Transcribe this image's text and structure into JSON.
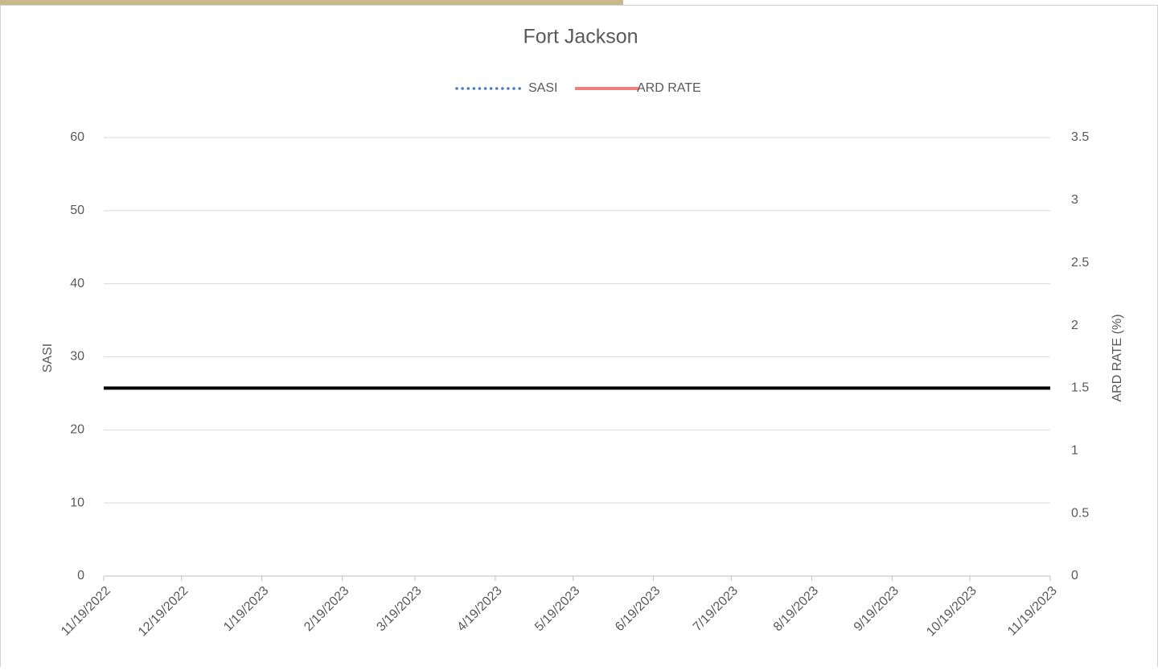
{
  "chart_data": {
    "type": "line",
    "title": "Fort Jackson",
    "x": [
      "11/19/2022",
      "12/19/2022",
      "1/19/2023",
      "2/19/2023",
      "3/19/2023",
      "4/19/2023",
      "5/19/2023",
      "6/19/2023",
      "7/19/2023",
      "8/19/2023",
      "9/19/2023",
      "10/19/2023",
      "11/19/2023"
    ],
    "xlim": [
      "11/19/2022",
      "11/19/2023"
    ],
    "series": [
      {
        "name": "SASI",
        "color": "#4a7ebb",
        "style": "dotted",
        "values": [
          null,
          null,
          null,
          null,
          null,
          null,
          null,
          null,
          null,
          null,
          null,
          null,
          null
        ]
      },
      {
        "name": "ARD RATE",
        "color": "#f08080",
        "style": "solid",
        "axis": "y2",
        "values": [
          null,
          null,
          null,
          null,
          null,
          null,
          null,
          null,
          null,
          null,
          null,
          null,
          null
        ]
      }
    ],
    "reference_line": {
      "value": 1.5,
      "axis": "y2",
      "color": "#000000"
    },
    "y_label": "SASI",
    "y2_label": "ARD RATE (%)",
    "ylim": [
      0,
      60
    ],
    "yticks": [
      0,
      10,
      20,
      30,
      40,
      50,
      60
    ],
    "y2lim": [
      0,
      3.5
    ],
    "y2ticks": [
      0,
      0.5,
      1,
      1.5,
      2,
      2.5,
      3,
      3.5
    ],
    "grid": true,
    "legend": "top"
  }
}
